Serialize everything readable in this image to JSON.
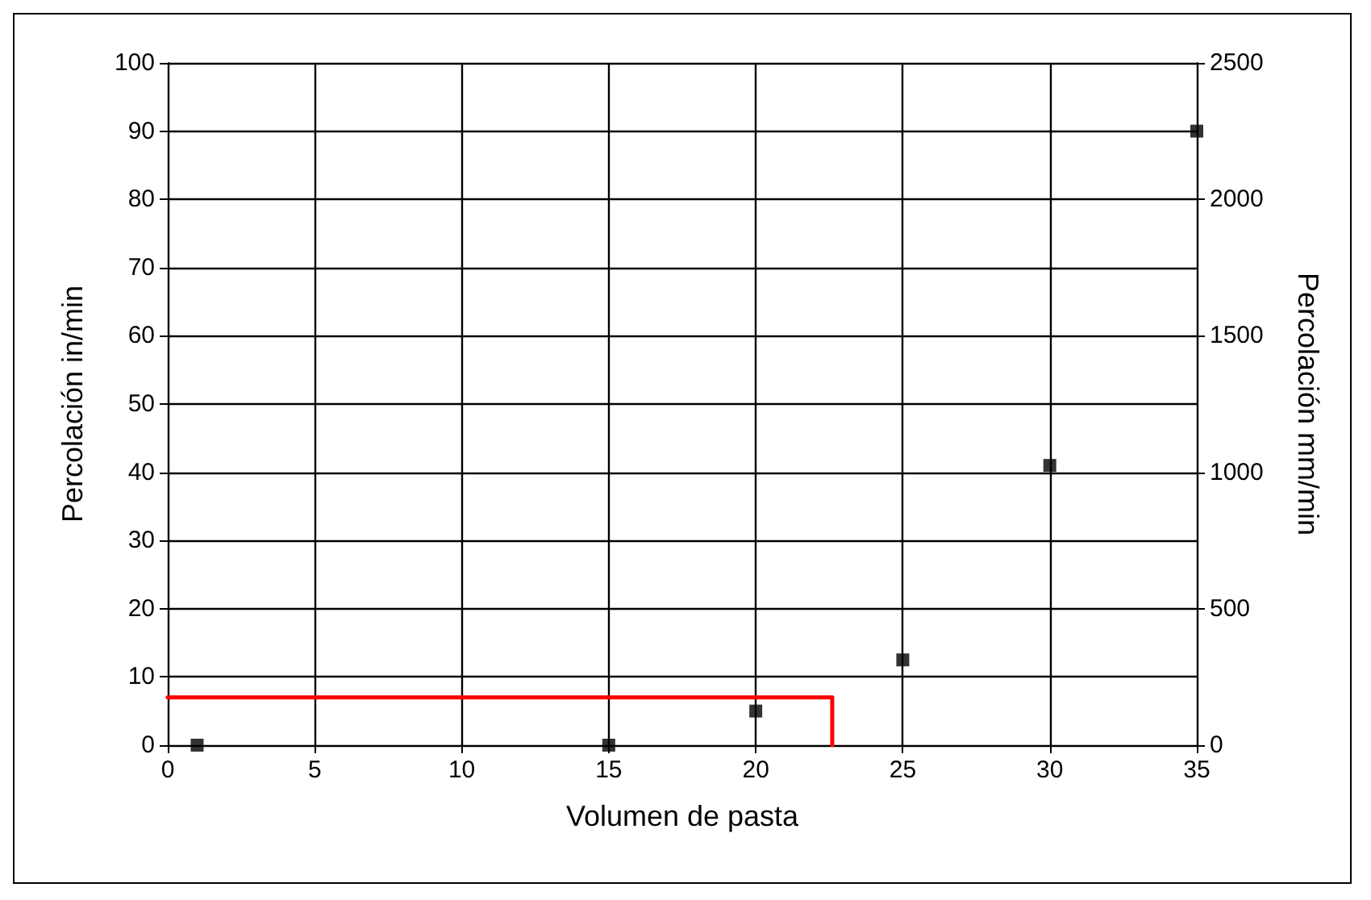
{
  "chart_data": {
    "type": "scatter",
    "xlabel": "Volumen de pasta",
    "ylabel": "Percolación in/min",
    "y2label": "Percolación mm/min",
    "xlim": [
      0,
      35
    ],
    "xticks": [
      0,
      5,
      10,
      15,
      20,
      25,
      30,
      35
    ],
    "ylim": [
      0,
      100
    ],
    "yticks": [
      0,
      10,
      20,
      30,
      40,
      50,
      60,
      70,
      80,
      90,
      100
    ],
    "y2lim": [
      0,
      2500
    ],
    "y2ticks": [
      0,
      500,
      1000,
      1500,
      2000,
      2500
    ],
    "grid": true,
    "series": [
      {
        "color": "#000000",
        "marker": "square",
        "x": [
          1,
          15,
          20,
          25,
          30,
          35
        ],
        "values": [
          0,
          0,
          5,
          12.5,
          41,
          90
        ]
      },
      {
        "type": "line",
        "color": "#ff0000",
        "marker": "none",
        "line_style": "solid",
        "x": [
          0,
          22.6,
          22.6
        ],
        "values": [
          7,
          7,
          0
        ]
      }
    ]
  }
}
